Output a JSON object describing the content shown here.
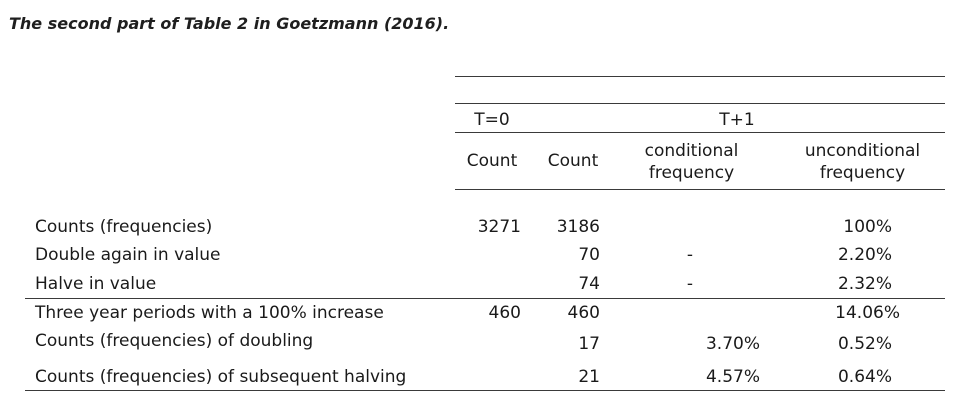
{
  "caption": "The second part of Table 2 in Goetzmann (2016).",
  "header": {
    "group_t0": "T=0",
    "group_t1": "T+1",
    "col_count_t0": "Count",
    "col_count_t1": "Count",
    "col_conditional_line1": "conditional",
    "col_conditional_line2": "frequency",
    "col_unconditional_line1": "unconditional",
    "col_unconditional_line2": "frequency"
  },
  "rows": [
    {
      "label": "Counts (frequencies)",
      "count_t0": "3271",
      "count_t1": "3186",
      "conditional": "",
      "unconditional": "100%"
    },
    {
      "label": "Double again in value",
      "count_t0": "",
      "count_t1": "70",
      "conditional": "-",
      "unconditional": "2.20%"
    },
    {
      "label": "Halve in value",
      "count_t0": "",
      "count_t1": "74",
      "conditional": "-",
      "unconditional": "2.32%"
    },
    {
      "label": "Three year periods with  a 100% increase",
      "count_t0": "460",
      "count_t1": "460",
      "conditional": "",
      "unconditional": "14.06%"
    },
    {
      "label": "Counts (frequencies) of doubling",
      "count_t0": "",
      "count_t1": "17",
      "conditional": "3.70%",
      "unconditional": "0.52%"
    },
    {
      "label": "Counts (frequencies) of subsequent halving",
      "count_t0": "",
      "count_t1": "21",
      "conditional": "4.57%",
      "unconditional": "0.64%"
    }
  ]
}
